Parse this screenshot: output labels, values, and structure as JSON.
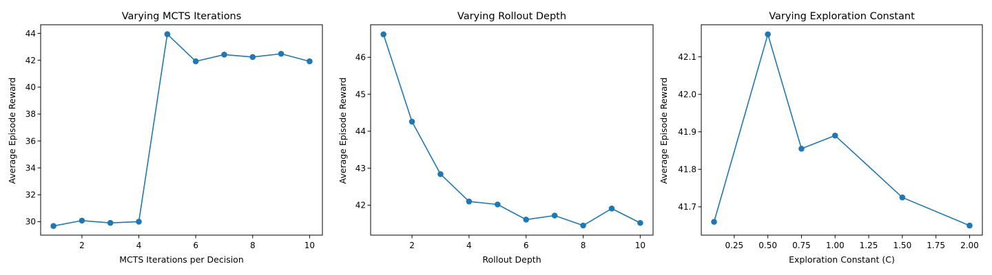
{
  "figure": {
    "background": "#ffffff",
    "line_color": "#1f77b4"
  },
  "chart_data": [
    {
      "type": "line",
      "title": "Varying MCTS Iterations",
      "xlabel": "MCTS Iterations per Decision",
      "ylabel": "Average Episode Reward",
      "x": [
        1,
        2,
        3,
        4,
        5,
        6,
        7,
        8,
        9,
        10
      ],
      "series": [
        {
          "values": [
            29.68,
            30.08,
            29.91,
            30.0,
            43.94,
            41.92,
            42.42,
            42.24,
            42.48,
            41.92
          ]
        }
      ],
      "xlim": [
        0.55,
        10.45
      ],
      "ylim": [
        29.0,
        44.64
      ],
      "xticks": [
        2,
        4,
        6,
        8,
        10
      ],
      "xtick_labels": [
        "2",
        "4",
        "6",
        "8",
        "10"
      ],
      "yticks": [
        30,
        32,
        34,
        36,
        38,
        40,
        42,
        44
      ],
      "ytick_labels": [
        "30",
        "32",
        "34",
        "36",
        "38",
        "40",
        "42",
        "44"
      ],
      "grid": false,
      "marker": "circle"
    },
    {
      "type": "line",
      "title": "Varying Rollout Depth",
      "xlabel": "Rollout Depth",
      "ylabel": "Average Episode Reward",
      "x": [
        1,
        2,
        3,
        4,
        5,
        6,
        7,
        8,
        9,
        10
      ],
      "series": [
        {
          "values": [
            46.62,
            44.26,
            42.84,
            42.1,
            42.02,
            41.61,
            41.72,
            41.45,
            41.91,
            41.52
          ]
        }
      ],
      "xlim": [
        0.55,
        10.45
      ],
      "ylim": [
        41.19,
        46.88
      ],
      "xticks": [
        2,
        4,
        6,
        8,
        10
      ],
      "xtick_labels": [
        "2",
        "4",
        "6",
        "8",
        "10"
      ],
      "yticks": [
        42,
        43,
        44,
        45,
        46
      ],
      "ytick_labels": [
        "42",
        "43",
        "44",
        "45",
        "46"
      ],
      "grid": false,
      "marker": "circle"
    },
    {
      "type": "line",
      "title": "Varying Exploration Constant",
      "xlabel": "Exploration Constant (C)",
      "ylabel": "Average Episode Reward",
      "x": [
        0.1,
        0.5,
        0.75,
        1.0,
        1.5,
        2.0
      ],
      "series": [
        {
          "values": [
            41.66,
            42.16,
            41.855,
            41.89,
            41.725,
            41.65
          ]
        }
      ],
      "xlim": [
        0.005,
        2.095
      ],
      "ylim": [
        41.6245,
        42.1855
      ],
      "xticks": [
        0.25,
        0.5,
        0.75,
        1.0,
        1.25,
        1.5,
        1.75,
        2.0
      ],
      "xtick_labels": [
        "0.25",
        "0.50",
        "0.75",
        "1.00",
        "1.25",
        "1.50",
        "1.75",
        "2.00"
      ],
      "yticks": [
        41.7,
        41.8,
        41.9,
        42.0,
        42.1
      ],
      "ytick_labels": [
        "41.7",
        "41.8",
        "41.9",
        "42.0",
        "42.1"
      ],
      "grid": false,
      "marker": "circle"
    }
  ]
}
